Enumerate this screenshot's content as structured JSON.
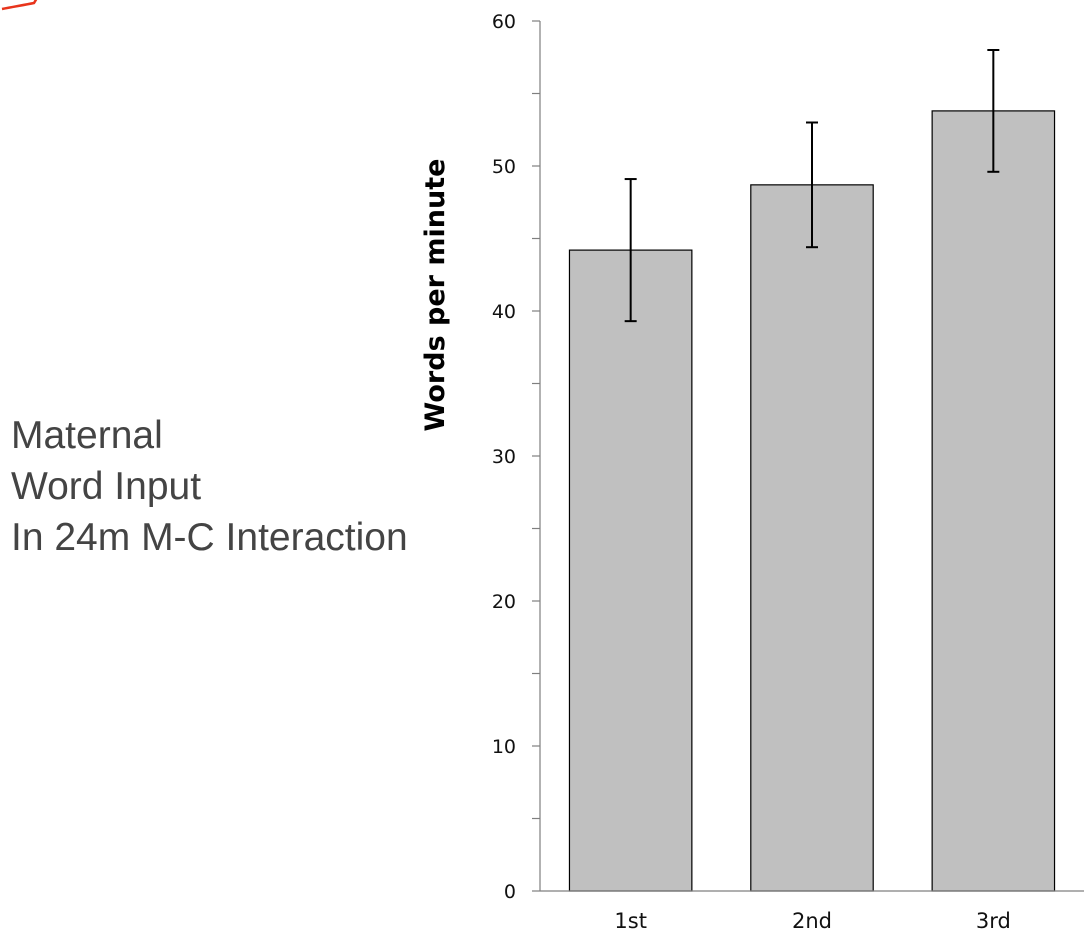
{
  "slide": {
    "title_lines": [
      "Maternal",
      "Word Input",
      "In 24m M-C Interaction"
    ],
    "accent_color": "#e8341c",
    "title_color": "#444444"
  },
  "chart_data": {
    "type": "bar",
    "categories": [
      "1st",
      "2nd",
      "3rd"
    ],
    "values": [
      44.2,
      48.7,
      53.8
    ],
    "error": [
      4.9,
      4.3,
      4.2
    ],
    "xlabel": "",
    "ylabel": "Words per minute",
    "ylim": [
      0,
      60
    ],
    "yticks": [
      0,
      10,
      20,
      30,
      40,
      50,
      60
    ],
    "grid": false,
    "legend": "none",
    "bar_color": "#c0c0c0"
  }
}
